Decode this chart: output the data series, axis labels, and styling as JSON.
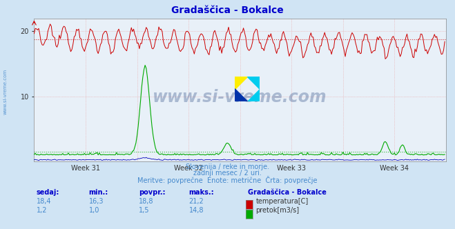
{
  "title": "Gradaščica - Bokalce",
  "title_color": "#0000cc",
  "bg_color": "#d0e4f4",
  "plot_bg_color": "#e8f0f8",
  "grid_color": "#e8a0a0",
  "n_points": 360,
  "temp_min": 16.3,
  "temp_max": 21.2,
  "temp_avg": 18.8,
  "temp_current": 18.4,
  "flow_min": 1.0,
  "flow_max": 14.8,
  "flow_avg": 1.5,
  "flow_current": 1.2,
  "ylim": [
    0,
    22
  ],
  "yticks": [
    10,
    20
  ],
  "temp_color": "#cc0000",
  "flow_color": "#00aa00",
  "height_color": "#0000bb",
  "week_labels": [
    "Week 31",
    "Week 32",
    "Week 33",
    "Week 34"
  ],
  "subtitle1": "Slovenija / reke in morje.",
  "subtitle2": "zadnji mesec / 2 uri.",
  "subtitle3": "Meritve: povprečne  Enote: metrične  Črta: povprečje",
  "subtitle_color": "#4488cc",
  "legend_title": "Gradaščica - Bokalce",
  "legend_title_color": "#0000cc",
  "label_temp": "temperatura[C]",
  "label_flow": "pretok[m3/s]",
  "table_header": [
    "sedaj:",
    "min.:",
    "povpr.:",
    "maks.:"
  ],
  "table_color": "#0000cc",
  "row1_vals": [
    "18,4",
    "16,3",
    "18,8",
    "21,2"
  ],
  "row2_vals": [
    "1,2",
    "1,0",
    "1,5",
    "14,8"
  ],
  "watermark": "www.si-vreme.com",
  "watermark_color": "#1a3a7a",
  "side_label": "www.si-vreme.com",
  "side_label_color": "#4488cc",
  "logo_colors": {
    "yellow": "#ffee00",
    "cyan": "#00ccee",
    "blue": "#0033aa"
  }
}
